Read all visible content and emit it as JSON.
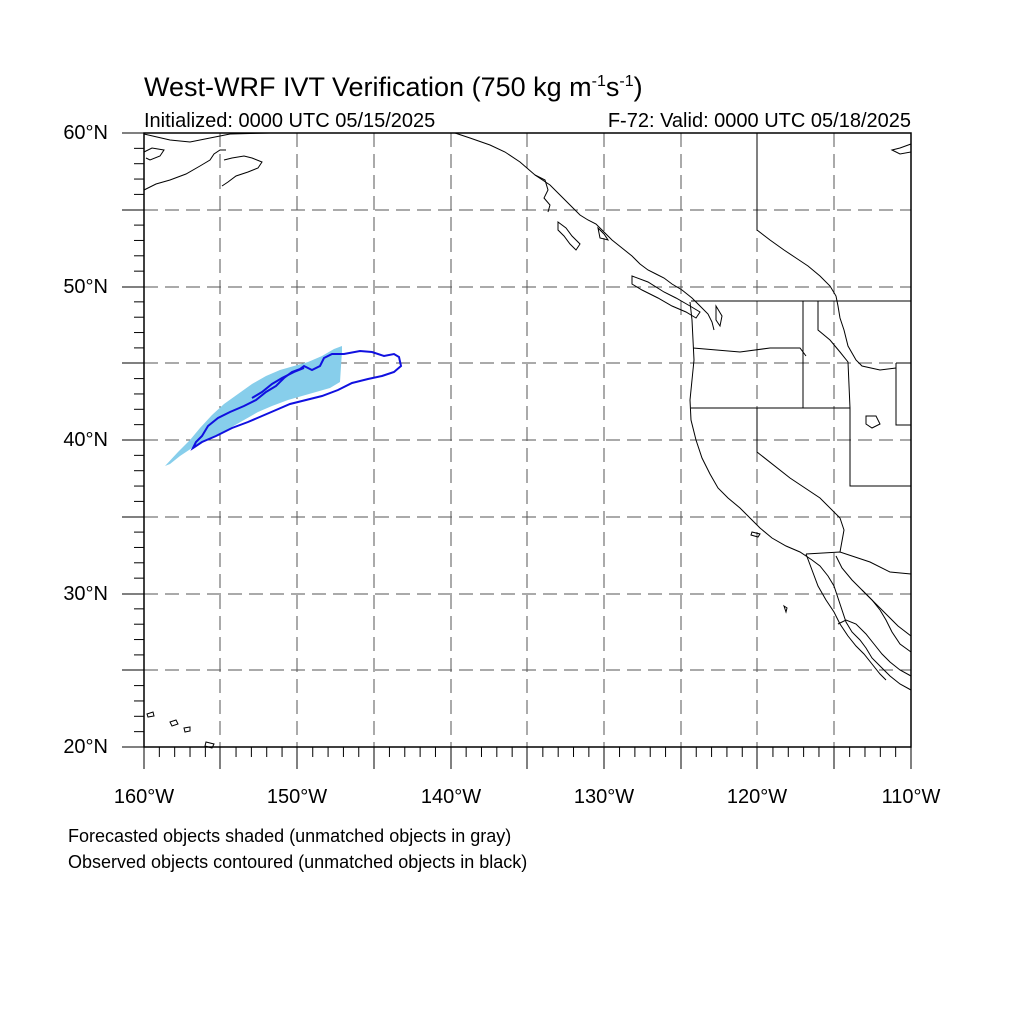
{
  "title": {
    "prefix": "West-WRF IVT Verification (750 kg m",
    "sup1": "-1",
    "mid": "s",
    "sup2": "-1",
    "suffix": ")"
  },
  "init_label": "Initialized: 0000 UTC 05/15/2025",
  "valid_label": "F-72: Valid: 0000 UTC 05/18/2025",
  "lat_labels": [
    "60°N",
    "50°N",
    "40°N",
    "30°N",
    "20°N"
  ],
  "lon_labels": [
    "160°W",
    "150°W",
    "140°W",
    "130°W",
    "120°W",
    "110°W"
  ],
  "notes": [
    "Forecasted objects shaded (unmatched objects in gray)",
    "Observed objects contoured (unmatched objects in black)"
  ],
  "colors": {
    "forecast_fill": "#87ceeb",
    "observed_contour": "#1010e0",
    "coastline": "#000000",
    "grid": "#555555"
  },
  "map_extent": {
    "lon": [
      -160,
      -110
    ],
    "lat": [
      20,
      60
    ]
  }
}
